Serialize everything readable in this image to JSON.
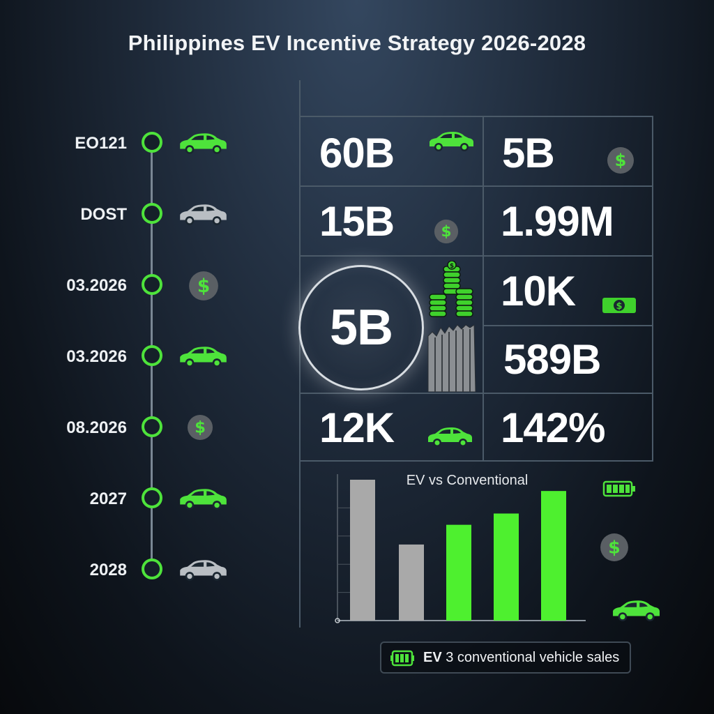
{
  "title": "Philippines EV Incentive Strategy 2026-2028",
  "timeline": [
    {
      "label": "EO121",
      "icon": "car-icon",
      "color": "#4ee33b"
    },
    {
      "label": "DOST",
      "icon": "car-icon",
      "color": "#b9bec3"
    },
    {
      "label": "03.2026",
      "icon": "dollar-coin-icon",
      "color": "#4ee33b"
    },
    {
      "label": "03.2026",
      "icon": "car-icon",
      "color": "#4ee33b"
    },
    {
      "label": "08.2026",
      "icon": "dollar-coin-icon",
      "color": "#4ee33b"
    },
    {
      "label": "2027",
      "icon": "car-icon",
      "color": "#4ee33b"
    },
    {
      "label": "2028",
      "icon": "car-icon",
      "color": "#b9bec3"
    }
  ],
  "stats": {
    "s1": "60B",
    "s2": "5B",
    "s3": "15B",
    "s4": "1.99M",
    "s5": "5B",
    "s6": "10K",
    "s7": "589B",
    "s8": "12K",
    "s9": "142%"
  },
  "chart_data": {
    "type": "bar",
    "title": "EV vs Conventional",
    "legend": "EV 3 conventional vehicle sales",
    "legend_bold": "EV",
    "legend_rest": "3 conventional vehicle sales",
    "bars": [
      {
        "value": 100,
        "color": "#a9a9a9",
        "series": "conventional"
      },
      {
        "value": 54,
        "color": "#a9a9a9",
        "series": "conventional"
      },
      {
        "value": 68,
        "color": "#4ef02f",
        "series": "EV"
      },
      {
        "value": 76,
        "color": "#4ef02f",
        "series": "EV"
      },
      {
        "value": 92,
        "color": "#4ef02f",
        "series": "EV"
      }
    ],
    "ylim": [
      0,
      100
    ],
    "grid": true
  },
  "colors": {
    "accent": "#4ee33b",
    "neutral": "#a9a9a9",
    "coin": "#5a5f64"
  }
}
